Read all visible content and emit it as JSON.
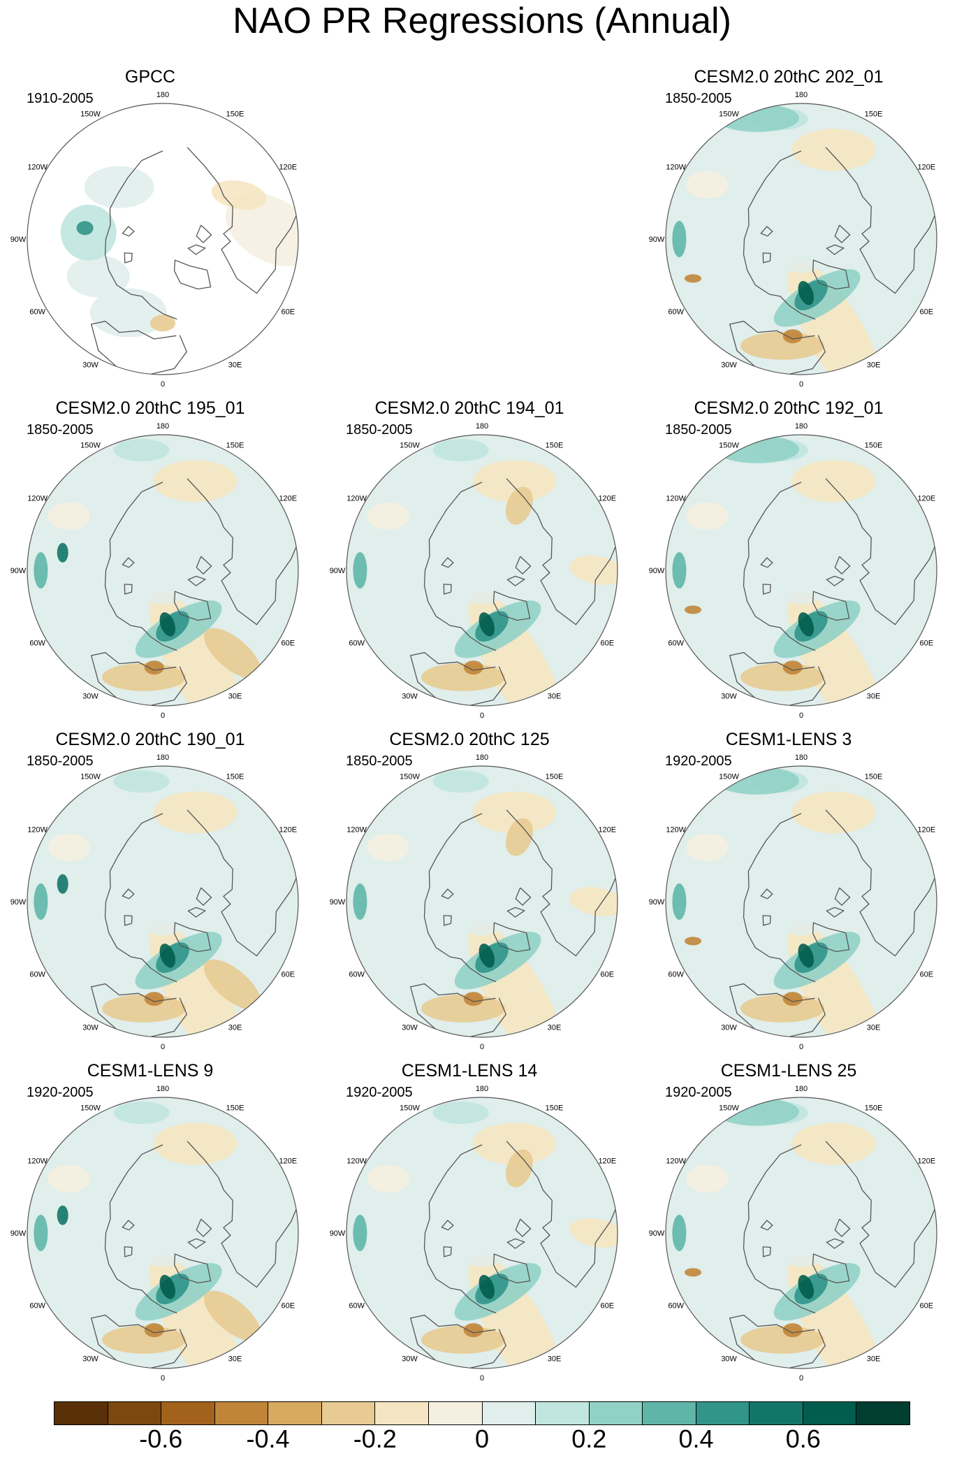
{
  "title": "NAO PR Regressions (Annual)",
  "longitude_labels": [
    "180",
    "150E",
    "120E",
    "90E",
    "60E",
    "30E",
    "0",
    "30W",
    "60W",
    "90W",
    "120W",
    "150W"
  ],
  "panels": [
    {
      "id": "gpcc",
      "title": "GPCC",
      "period": "1910-2005",
      "row": 0,
      "col": 0,
      "observational": true
    },
    {
      "id": "cesm2-202-01",
      "title": "CESM2.0 20thC 202_01",
      "period": "1850-2005",
      "row": 0,
      "col": 2
    },
    {
      "id": "cesm2-195-01",
      "title": "CESM2.0 20thC 195_01",
      "period": "1850-2005",
      "row": 1,
      "col": 0
    },
    {
      "id": "cesm2-194-01",
      "title": "CESM2.0 20thC 194_01",
      "period": "1850-2005",
      "row": 1,
      "col": 1
    },
    {
      "id": "cesm2-192-01",
      "title": "CESM2.0 20thC 192_01",
      "period": "1850-2005",
      "row": 1,
      "col": 2
    },
    {
      "id": "cesm2-190-01",
      "title": "CESM2.0 20thC 190_01",
      "period": "1850-2005",
      "row": 2,
      "col": 0
    },
    {
      "id": "cesm2-125",
      "title": "CESM2.0 20thC 125",
      "period": "1850-2005",
      "row": 2,
      "col": 1
    },
    {
      "id": "cesm1-lens-3",
      "title": "CESM1-LENS 3",
      "period": "1920-2005",
      "row": 2,
      "col": 2
    },
    {
      "id": "cesm1-lens-9",
      "title": "CESM1-LENS 9",
      "period": "1920-2005",
      "row": 3,
      "col": 0
    },
    {
      "id": "cesm1-lens-14",
      "title": "CESM1-LENS 14",
      "period": "1920-2005",
      "row": 3,
      "col": 1
    },
    {
      "id": "cesm1-lens-25",
      "title": "CESM1-LENS 25",
      "period": "1920-2005",
      "row": 3,
      "col": 2
    }
  ],
  "colorbar": {
    "colors": [
      "#5a3008",
      "#7d4710",
      "#a2621c",
      "#c1853a",
      "#d7aa60",
      "#e8cb92",
      "#f5e5c2",
      "#f5efe1",
      "#e0eeec",
      "#c0e6df",
      "#91d2c6",
      "#5fb6a8",
      "#31958a",
      "#137568",
      "#025d4e",
      "#013d30"
    ],
    "labels": [
      "-0.6",
      "-0.4",
      "-0.2",
      "0",
      "0.2",
      "0.4",
      "0.6"
    ],
    "label_box_boundaries": [
      2,
      4,
      6,
      8,
      10,
      12,
      14
    ]
  },
  "palette": {
    "land_outline": "#555555",
    "neutral": "#f5efe1",
    "light_blue": "#e0eeec"
  }
}
